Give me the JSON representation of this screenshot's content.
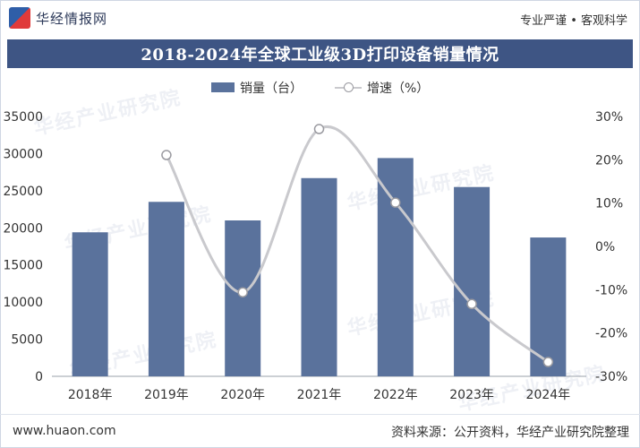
{
  "header": {
    "brand": "华经情报网",
    "slogan": "专业严谨 • 客观科学"
  },
  "watermark_text": "华经产业研究院",
  "footer": {
    "url": "www.huaon.com",
    "source": "资料来源：公开资料，华经产业研究院整理"
  },
  "colors": {
    "bar": "#5a729c",
    "line": "#c9c9cd",
    "title_bg": "#3e5584"
  },
  "chart_data": {
    "type": "bar",
    "title": "2018-2024年全球工业级3D打印设备销量情况",
    "categories": [
      "2018年",
      "2019年",
      "2020年",
      "2021年",
      "2022年",
      "2023年",
      "2024年"
    ],
    "series": [
      {
        "name": "销量（台）",
        "type": "bar",
        "axis": "left",
        "values": [
          19400,
          23500,
          21000,
          26700,
          29400,
          25500,
          18700
        ]
      },
      {
        "name": "增速（%）",
        "type": "line",
        "axis": "right",
        "values": [
          null,
          21.1,
          -10.6,
          27.1,
          10.1,
          -13.3,
          -26.7
        ]
      }
    ],
    "y_left": {
      "ylim": [
        0,
        35000
      ],
      "ticks": [
        0,
        5000,
        10000,
        15000,
        20000,
        25000,
        30000,
        35000
      ],
      "tick_labels": [
        "0",
        "5000",
        "10000",
        "15000",
        "20000",
        "25000",
        "30000",
        "35000"
      ]
    },
    "y_right": {
      "ylim": [
        -30,
        30
      ],
      "ticks": [
        30,
        20,
        10,
        0,
        -10,
        -20,
        -30
      ],
      "tick_labels": [
        "30%",
        "20%",
        "10%",
        "0%",
        "-10%",
        "-20%",
        "-30%"
      ]
    },
    "legend_position": "top-center"
  }
}
